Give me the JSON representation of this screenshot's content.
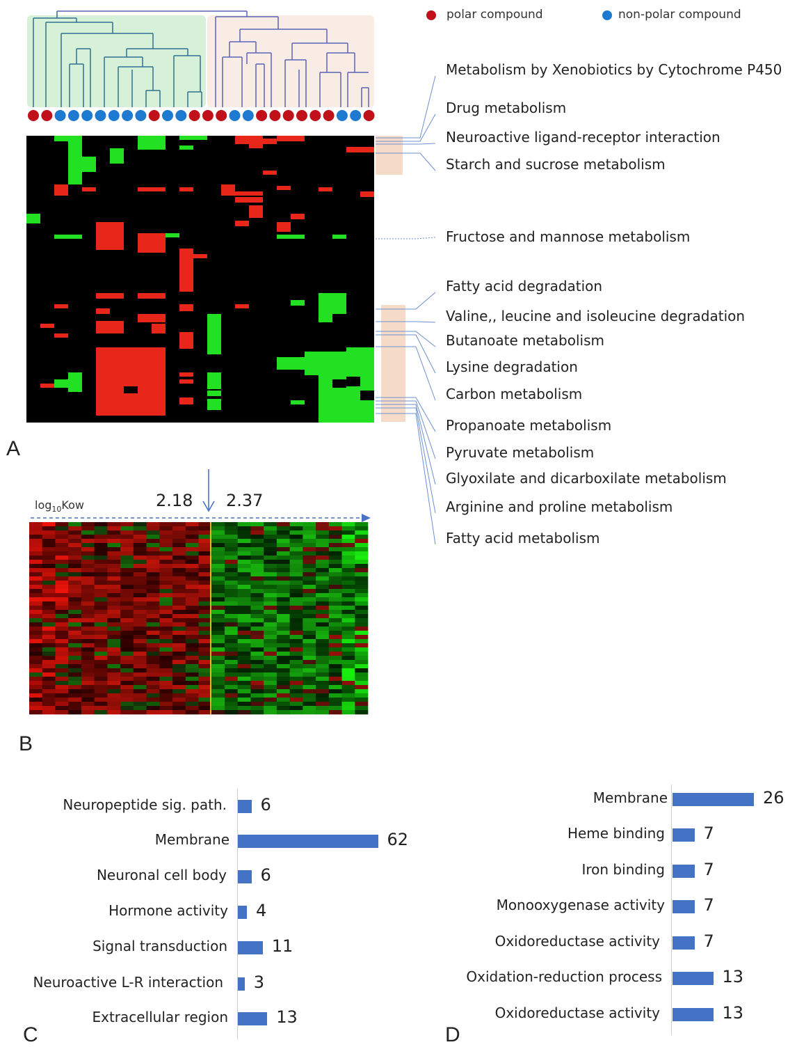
{
  "legend": {
    "polar": {
      "label": "polar compound",
      "color": "#c0111b"
    },
    "nonpolar": {
      "label": "non-polar compound",
      "color": "#1e7ad1"
    }
  },
  "panel_a": {
    "letter": "A",
    "sample_polarity": [
      "polar",
      "polar",
      "nonpolar",
      "nonpolar",
      "nonpolar",
      "nonpolar",
      "nonpolar",
      "nonpolar",
      "nonpolar",
      "polar",
      "nonpolar",
      "nonpolar",
      "polar",
      "polar",
      "polar",
      "nonpolar",
      "nonpolar",
      "polar",
      "polar",
      "polar",
      "polar",
      "polar",
      "polar",
      "nonpolar",
      "nonpolar",
      "polar"
    ],
    "pathways": [
      "Metabolism by Xenobiotics by Cytochrome P450",
      "Drug metabolism",
      "Neuroactive ligand-receptor interaction",
      "Starch and sucrose metabolism",
      "Fructose and mannose metabolism",
      "Fatty acid degradation",
      "Valine,, leucine and isoleucine degradation",
      "Butanoate metabolism",
      "Lysine degradation",
      "Carbon metabolism",
      "Propanoate metabolism",
      "Pyruvate metabolism",
      "Glyoxilate and dicarboxilate metabolism",
      "Arginine and proline metabolism",
      "Fatty acid metabolism"
    ],
    "heatmap_colors": {
      "background": "#000000",
      "up": "#e8261a",
      "down": "#22e022"
    }
  },
  "panel_b": {
    "letter": "B",
    "axis_label_main": "log",
    "axis_label_sub": "10",
    "axis_label_tail": "Kow",
    "threshold_left": "2.18",
    "threshold_right": "2.37"
  },
  "chart_data": [
    {
      "type": "bar",
      "panel": "C",
      "orientation": "horizontal",
      "categories": [
        "Neuropeptide sig. path.",
        "Membrane",
        "Neuronal cell body",
        "Hormone activity",
        "Signal transduction",
        "Neuroactive L-R interaction",
        "Extracellular region"
      ],
      "values": [
        6,
        62,
        6,
        4,
        11,
        3,
        13
      ],
      "color": "#4472c4"
    },
    {
      "type": "bar",
      "panel": "D",
      "orientation": "horizontal",
      "categories": [
        "Membrane",
        "Heme binding",
        "Iron binding",
        "Monooxygenase activity",
        "Oxidoreductase activity",
        "Oxidation-reduction process",
        "Oxidoreductase activity"
      ],
      "values": [
        26,
        7,
        7,
        7,
        7,
        13,
        13
      ],
      "color": "#4472c4"
    }
  ],
  "panel_c": {
    "letter": "C"
  },
  "panel_d": {
    "letter": "D"
  }
}
